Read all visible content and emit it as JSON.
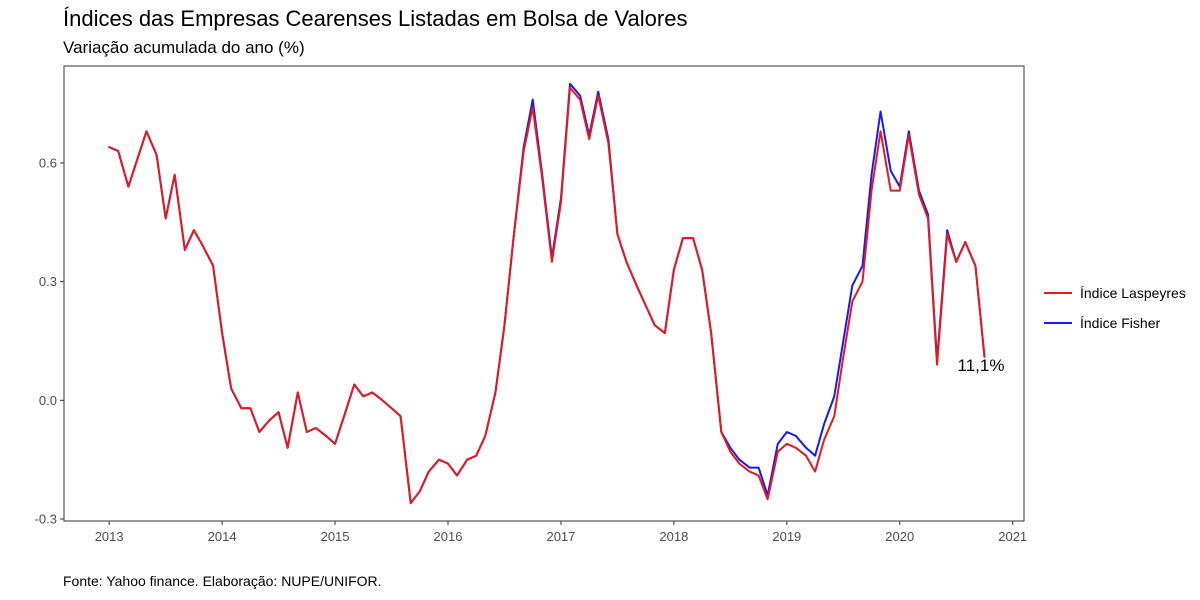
{
  "header": {
    "title": "Índices das Empresas Cearenses Listadas em Bolsa de Valores",
    "subtitle": "Variação acumulada do ano (%)"
  },
  "footer": {
    "caption": "Fonte: Yahoo finance. Elaboração: NUPE/UNIFOR."
  },
  "chart_data": {
    "type": "line",
    "title": "Índices das Empresas Cearenses Listadas em Bolsa de Valores",
    "subtitle": "Variação acumulada do ano (%)",
    "xlabel": "",
    "ylabel": "",
    "xlim": [
      2012.6,
      2021.1
    ],
    "ylim": [
      -0.305,
      0.845
    ],
    "x_ticks": [
      2013,
      2014,
      2015,
      2016,
      2017,
      2018,
      2019,
      2020,
      2021
    ],
    "x_tick_labels": [
      "2013",
      "2014",
      "2015",
      "2016",
      "2017",
      "2018",
      "2019",
      "2020",
      "2021"
    ],
    "y_ticks": [
      -0.3,
      0.0,
      0.3,
      0.6
    ],
    "y_tick_labels": [
      "-0.3",
      "0.0",
      "0.3",
      "0.6"
    ],
    "grid": false,
    "legend_position": "right",
    "end_label": "11,1%",
    "colors": {
      "laspeyres": "#e41a1c",
      "fisher": "#1a1aee"
    },
    "x": [
      2013.0,
      2013.08,
      2013.17,
      2013.25,
      2013.33,
      2013.42,
      2013.5,
      2013.58,
      2013.67,
      2013.75,
      2013.83,
      2013.92,
      2014.0,
      2014.08,
      2014.17,
      2014.25,
      2014.33,
      2014.42,
      2014.5,
      2014.58,
      2014.67,
      2014.75,
      2014.83,
      2014.92,
      2015.0,
      2015.08,
      2015.17,
      2015.25,
      2015.33,
      2015.42,
      2015.5,
      2015.58,
      2015.67,
      2015.75,
      2015.83,
      2015.92,
      2016.0,
      2016.08,
      2016.17,
      2016.25,
      2016.33,
      2016.42,
      2016.5,
      2016.58,
      2016.67,
      2016.75,
      2016.83,
      2016.92,
      2017.0,
      2017.08,
      2017.17,
      2017.25,
      2017.33,
      2017.42,
      2017.5,
      2017.58,
      2017.67,
      2017.75,
      2017.83,
      2017.92,
      2018.0,
      2018.08,
      2018.17,
      2018.25,
      2018.33,
      2018.42,
      2018.5,
      2018.58,
      2018.67,
      2018.75,
      2018.83,
      2018.92,
      2019.0,
      2019.08,
      2019.17,
      2019.25,
      2019.33,
      2019.42,
      2019.5,
      2019.58,
      2019.67,
      2019.75,
      2019.83,
      2019.92,
      2020.0,
      2020.08,
      2020.17,
      2020.25,
      2020.33,
      2020.42,
      2020.5,
      2020.58,
      2020.67,
      2020.75
    ],
    "series": [
      {
        "name": "Índice Laspeyres",
        "color": "#e41a1c",
        "values": [
          0.64,
          0.63,
          0.54,
          0.61,
          0.68,
          0.62,
          0.46,
          0.57,
          0.38,
          0.43,
          0.39,
          0.34,
          0.17,
          0.03,
          -0.02,
          -0.02,
          -0.08,
          -0.05,
          -0.03,
          -0.12,
          0.02,
          -0.08,
          -0.07,
          -0.09,
          -0.11,
          -0.04,
          0.04,
          0.01,
          0.02,
          0.0,
          -0.02,
          -0.04,
          -0.26,
          -0.23,
          -0.18,
          -0.15,
          -0.16,
          -0.19,
          -0.15,
          -0.14,
          -0.09,
          0.02,
          0.19,
          0.41,
          0.63,
          0.74,
          0.57,
          0.35,
          0.5,
          0.79,
          0.76,
          0.66,
          0.77,
          0.65,
          0.42,
          0.35,
          0.29,
          0.24,
          0.19,
          0.17,
          0.33,
          0.41,
          0.41,
          0.33,
          0.17,
          -0.08,
          -0.13,
          -0.16,
          -0.18,
          -0.19,
          -0.25,
          -0.13,
          -0.11,
          -0.12,
          -0.14,
          -0.18,
          -0.1,
          -0.04,
          0.11,
          0.25,
          0.3,
          0.53,
          0.68,
          0.53,
          0.53,
          0.67,
          0.52,
          0.46,
          0.09,
          0.42,
          0.35,
          0.4,
          0.34,
          0.11
        ]
      },
      {
        "name": "Índice Fisher",
        "color": "#1a1aee",
        "values": [
          0.64,
          0.63,
          0.54,
          0.61,
          0.68,
          0.62,
          0.46,
          0.57,
          0.38,
          0.43,
          0.39,
          0.34,
          0.17,
          0.03,
          -0.02,
          -0.02,
          -0.08,
          -0.05,
          -0.03,
          -0.12,
          0.02,
          -0.08,
          -0.07,
          -0.09,
          -0.11,
          -0.04,
          0.04,
          0.01,
          0.02,
          0.0,
          -0.02,
          -0.04,
          -0.26,
          -0.23,
          -0.18,
          -0.15,
          -0.16,
          -0.19,
          -0.15,
          -0.14,
          -0.09,
          0.02,
          0.19,
          0.41,
          0.64,
          0.76,
          0.58,
          0.36,
          0.51,
          0.8,
          0.77,
          0.67,
          0.78,
          0.66,
          0.42,
          0.35,
          0.29,
          0.24,
          0.19,
          0.17,
          0.33,
          0.41,
          0.41,
          0.33,
          0.17,
          -0.08,
          -0.12,
          -0.15,
          -0.17,
          -0.17,
          -0.24,
          -0.11,
          -0.08,
          -0.09,
          -0.12,
          -0.14,
          -0.06,
          0.01,
          0.15,
          0.29,
          0.34,
          0.57,
          0.73,
          0.58,
          0.54,
          0.68,
          0.53,
          0.47,
          0.1,
          0.43,
          0.35,
          0.4,
          0.34,
          0.11
        ]
      }
    ]
  }
}
